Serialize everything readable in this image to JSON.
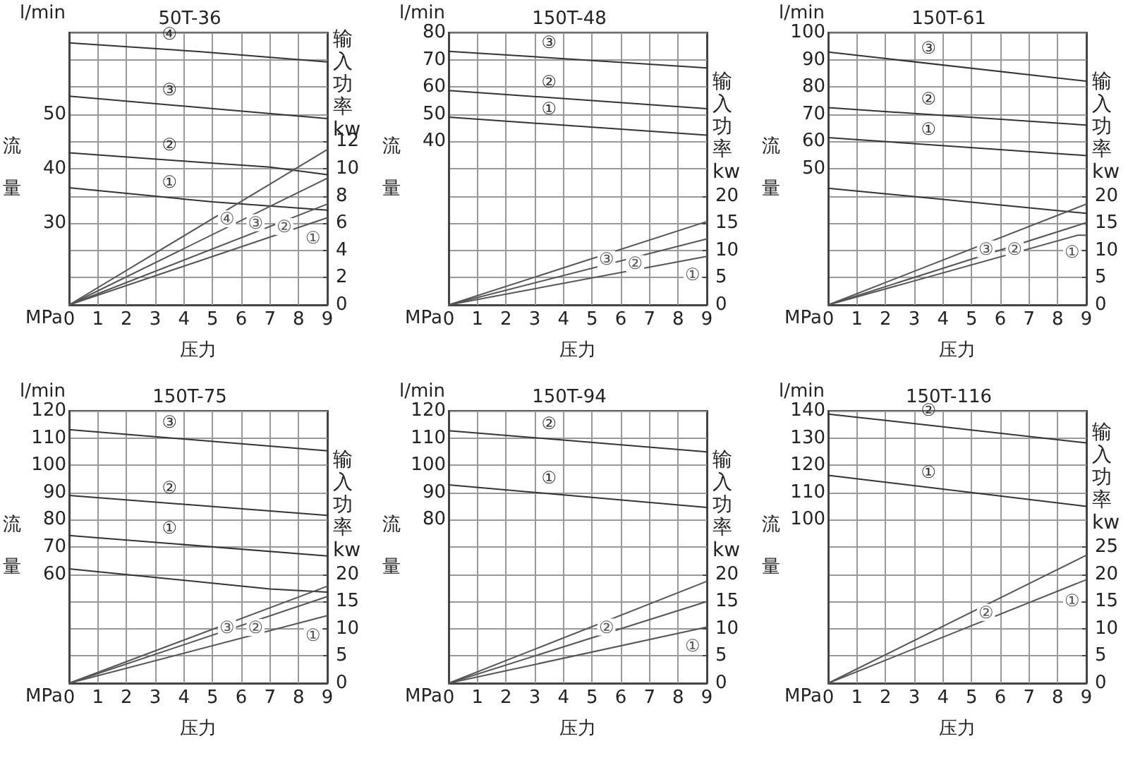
{
  "chart_data": [
    {
      "type": "line",
      "title": "50T-36",
      "xlabel": "压力",
      "ylabel": "流量",
      "y2label": "输入功率kw",
      "grid": true,
      "xlim": [
        0,
        9
      ],
      "xticks": [
        0,
        1,
        2,
        3,
        4,
        5,
        6,
        7,
        8,
        9
      ],
      "ylim": [
        15,
        65
      ],
      "yticks": [
        {
          "value": 15,
          "label": null
        },
        {
          "value": 20,
          "label": null
        },
        {
          "value": 25,
          "label": null
        },
        30,
        {
          "value": 35,
          "label": null
        },
        40,
        {
          "value": 45,
          "label": null
        },
        50,
        {
          "value": 55,
          "label": null
        },
        {
          "value": 60,
          "label": null
        },
        {
          "value": 65,
          "label": null
        }
      ],
      "y2lim": [
        0,
        20
      ],
      "y2ticks": [
        0,
        2,
        4,
        6,
        8,
        10,
        12
      ],
      "series": [
        {
          "name": "④",
          "x": [
            0,
            4.5,
            9
          ],
          "values": [
            63.1,
            61.5,
            59.6
          ],
          "color": "#333333"
        },
        {
          "name": "③",
          "x": [
            0,
            9
          ],
          "values": [
            53.3,
            49.2
          ],
          "color": "#333333"
        },
        {
          "name": "②",
          "x": [
            0,
            4.5,
            7,
            9
          ],
          "values": [
            42.9,
            41.2,
            40.3,
            38.9
          ],
          "color": "#333333"
        },
        {
          "name": "①",
          "x": [
            0,
            5,
            9
          ],
          "values": [
            36.5,
            33.9,
            32.4
          ],
          "color": "#333333"
        },
        {
          "name": "④",
          "x": [
            0,
            9
          ],
          "values": [
            0,
            11.4
          ],
          "color": "#555555",
          "axis": "y2"
        },
        {
          "name": "③",
          "x": [
            0,
            9
          ],
          "values": [
            0,
            9.3
          ],
          "color": "#555555",
          "axis": "y2"
        },
        {
          "name": "②",
          "x": [
            0,
            9
          ],
          "values": [
            0,
            7.4
          ],
          "color": "#555555",
          "axis": "y2"
        },
        {
          "name": "①",
          "x": [
            0,
            9
          ],
          "values": [
            0,
            6.4
          ],
          "color": "#555555",
          "axis": "y2"
        }
      ],
      "annotations": [
        "l/min",
        "MPa"
      ]
    },
    {
      "type": "line",
      "title": "150T-48",
      "xlabel": "压力",
      "ylabel": "流量",
      "y2label": "输入功率kw",
      "grid": true,
      "xlim": [
        0,
        9
      ],
      "xticks": [
        0,
        1,
        2,
        3,
        4,
        5,
        6,
        7,
        8,
        9
      ],
      "ylim": [
        -20,
        80
      ],
      "yticks": [
        {
          "value": -20,
          "label": null
        },
        {
          "value": -10,
          "label": null
        },
        {
          "value": 0,
          "label": null
        },
        {
          "value": 10,
          "label": null
        },
        {
          "value": 20,
          "label": null
        },
        {
          "value": 30,
          "label": null
        },
        40,
        50,
        60,
        70,
        80
      ],
      "y2lim": [
        0,
        50
      ],
      "y2ticks": [
        0,
        5,
        10,
        15,
        20
      ],
      "series": [
        {
          "name": "③",
          "x": [
            0,
            9
          ],
          "values": [
            73.1,
            67.0
          ],
          "color": "#333333"
        },
        {
          "name": "②",
          "x": [
            0,
            9
          ],
          "values": [
            58.7,
            52.0
          ],
          "color": "#333333"
        },
        {
          "name": "①",
          "x": [
            0,
            9
          ],
          "values": [
            48.9,
            42.3
          ],
          "color": "#333333"
        },
        {
          "name": "③",
          "x": [
            0,
            9
          ],
          "values": [
            0,
            15.3
          ],
          "color": "#555555",
          "axis": "y2"
        },
        {
          "name": "②",
          "x": [
            0,
            9
          ],
          "values": [
            0,
            12.1
          ],
          "color": "#555555",
          "axis": "y2"
        },
        {
          "name": "①",
          "x": [
            0,
            9
          ],
          "values": [
            0,
            8.9
          ],
          "color": "#555555",
          "axis": "y2"
        }
      ],
      "annotations": [
        "l/min",
        "MPa"
      ]
    },
    {
      "type": "line",
      "title": "150T-61",
      "xlabel": "压力",
      "ylabel": "流量",
      "y2label": "输入功率kw",
      "grid": true,
      "xlim": [
        0,
        9
      ],
      "xticks": [
        0,
        1,
        2,
        3,
        4,
        5,
        6,
        7,
        8,
        9
      ],
      "ylim": [
        0,
        100
      ],
      "yticks": [
        {
          "value": 0,
          "label": null
        },
        {
          "value": 10,
          "label": null
        },
        {
          "value": 20,
          "label": null
        },
        {
          "value": 30,
          "label": null
        },
        {
          "value": 40,
          "label": null
        },
        50,
        60,
        70,
        80,
        90,
        100
      ],
      "y2lim": [
        0,
        50
      ],
      "y2ticks": [
        0,
        5,
        10,
        15,
        20
      ],
      "series": [
        {
          "name": "③",
          "x": [
            0,
            9
          ],
          "values": [
            92.8,
            82.1
          ],
          "color": "#333333"
        },
        {
          "name": "②",
          "x": [
            0,
            9
          ],
          "values": [
            72.4,
            66.0
          ],
          "color": "#333333"
        },
        {
          "name": "①",
          "x": [
            0,
            9
          ],
          "values": [
            61.4,
            54.8
          ],
          "color": "#333333"
        },
        {
          "x": [
            0,
            9
          ],
          "values": [
            42.8,
            33.6
          ],
          "color": "#333333"
        },
        {
          "name": "③",
          "x": [
            0,
            9
          ],
          "values": [
            0,
            18.5
          ],
          "color": "#555555",
          "axis": "y2"
        },
        {
          "name": "②",
          "x": [
            0,
            9
          ],
          "values": [
            0,
            15.1
          ],
          "color": "#555555",
          "axis": "y2"
        },
        {
          "name": "①",
          "x": [
            0,
            8.7,
            9
          ],
          "values": [
            0,
            12.8,
            12.8
          ],
          "color": "#555555",
          "axis": "y2"
        }
      ],
      "annotations": [
        "l/min",
        "MPa"
      ]
    },
    {
      "type": "line",
      "title": "150T-75",
      "xlabel": "压力",
      "ylabel": "流量",
      "y2label": "输入功率kw",
      "grid": true,
      "xlim": [
        0,
        9
      ],
      "xticks": [
        0,
        1,
        2,
        3,
        4,
        5,
        6,
        7,
        8,
        9
      ],
      "ylim": [
        20,
        120
      ],
      "yticks": [
        {
          "value": 20,
          "label": null
        },
        {
          "value": 30,
          "label": null
        },
        {
          "value": 40,
          "label": null
        },
        {
          "value": 50,
          "label": null
        },
        60,
        70,
        80,
        90,
        100,
        110,
        120
      ],
      "y2lim": [
        0,
        50
      ],
      "y2ticks": [
        0,
        5,
        10,
        15,
        20
      ],
      "series": [
        {
          "name": "③",
          "x": [
            0,
            9
          ],
          "values": [
            113.1,
            105.3
          ],
          "color": "#333333"
        },
        {
          "name": "②",
          "x": [
            0,
            9
          ],
          "values": [
            88.9,
            81.6
          ],
          "color": "#333333"
        },
        {
          "name": "①",
          "x": [
            0,
            9
          ],
          "values": [
            74.2,
            66.7
          ],
          "color": "#333333"
        },
        {
          "x": [
            0,
            7,
            9
          ],
          "values": [
            62.0,
            54.6,
            53.4
          ],
          "color": "#333333"
        },
        {
          "name": "③",
          "x": [
            0,
            9
          ],
          "values": [
            0,
            17.8
          ],
          "color": "#555555",
          "axis": "y2"
        },
        {
          "name": "②",
          "x": [
            0,
            9
          ],
          "values": [
            0,
            15.9
          ],
          "color": "#555555",
          "axis": "y2"
        },
        {
          "name": "①",
          "x": [
            0,
            9
          ],
          "values": [
            0,
            12.4
          ],
          "color": "#555555",
          "axis": "y2"
        }
      ],
      "annotations": [
        "l/min",
        "MPa"
      ]
    },
    {
      "type": "line",
      "title": "150T-94",
      "xlabel": "压力",
      "ylabel": "流量",
      "y2label": "输入功率kw",
      "grid": true,
      "xlim": [
        0,
        9
      ],
      "xticks": [
        0,
        1,
        2,
        3,
        4,
        5,
        6,
        7,
        8,
        9
      ],
      "ylim": [
        20,
        120
      ],
      "yticks": [
        {
          "value": 20,
          "label": null
        },
        {
          "value": 30,
          "label": null
        },
        {
          "value": 40,
          "label": null
        },
        {
          "value": 50,
          "label": null
        },
        {
          "value": 60,
          "label": null
        },
        {
          "value": 70,
          "label": null
        },
        80,
        90,
        100,
        110,
        120
      ],
      "y2lim": [
        0,
        50
      ],
      "y2ticks": [
        0,
        5,
        10,
        15,
        20
      ],
      "series": [
        {
          "name": "②",
          "x": [
            0,
            9
          ],
          "values": [
            112.7,
            104.9
          ],
          "color": "#333333"
        },
        {
          "name": "①",
          "x": [
            0,
            9
          ],
          "values": [
            92.8,
            84.5
          ],
          "color": "#333333"
        },
        {
          "name": "②",
          "x": [
            0,
            9
          ],
          "values": [
            0,
            18.7
          ],
          "color": "#555555",
          "axis": "y2"
        },
        {
          "x": [
            0,
            9
          ],
          "values": [
            0,
            15.0
          ],
          "color": "#555555",
          "axis": "y2"
        },
        {
          "name": "①",
          "x": [
            0,
            9
          ],
          "values": [
            0,
            10.3
          ],
          "color": "#555555",
          "axis": "y2"
        }
      ],
      "annotations": [
        "l/min",
        "MPa"
      ]
    },
    {
      "type": "line",
      "title": "150T-116",
      "xlabel": "压力",
      "ylabel": "流量",
      "y2label": "输入功率kw",
      "grid": true,
      "xlim": [
        0,
        9
      ],
      "xticks": [
        0,
        1,
        2,
        3,
        4,
        5,
        6,
        7,
        8,
        9
      ],
      "ylim": [
        40,
        140
      ],
      "yticks": [
        {
          "value": 40,
          "label": null
        },
        {
          "value": 50,
          "label": null
        },
        {
          "value": 60,
          "label": null
        },
        {
          "value": 70,
          "label": null
        },
        {
          "value": 80,
          "label": null
        },
        {
          "value": 90,
          "label": null
        },
        100,
        110,
        120,
        130,
        140
      ],
      "y2lim": [
        0,
        50
      ],
      "y2ticks": [
        0,
        5,
        10,
        15,
        20,
        25
      ],
      "series": [
        {
          "name": "②",
          "x": [
            0,
            9
          ],
          "values": [
            138.8,
            128.2
          ],
          "color": "#333333"
        },
        {
          "name": "①",
          "x": [
            0,
            9
          ],
          "values": [
            116.3,
            104.9
          ],
          "color": "#333333"
        },
        {
          "name": "②",
          "x": [
            0,
            9
          ],
          "values": [
            0,
            23.5
          ],
          "color": "#555555",
          "axis": "y2"
        },
        {
          "name": "①",
          "x": [
            0,
            9
          ],
          "values": [
            0,
            19.0
          ],
          "color": "#555555",
          "axis": "y2"
        }
      ],
      "annotations": [
        "l/min",
        "MPa"
      ]
    }
  ]
}
